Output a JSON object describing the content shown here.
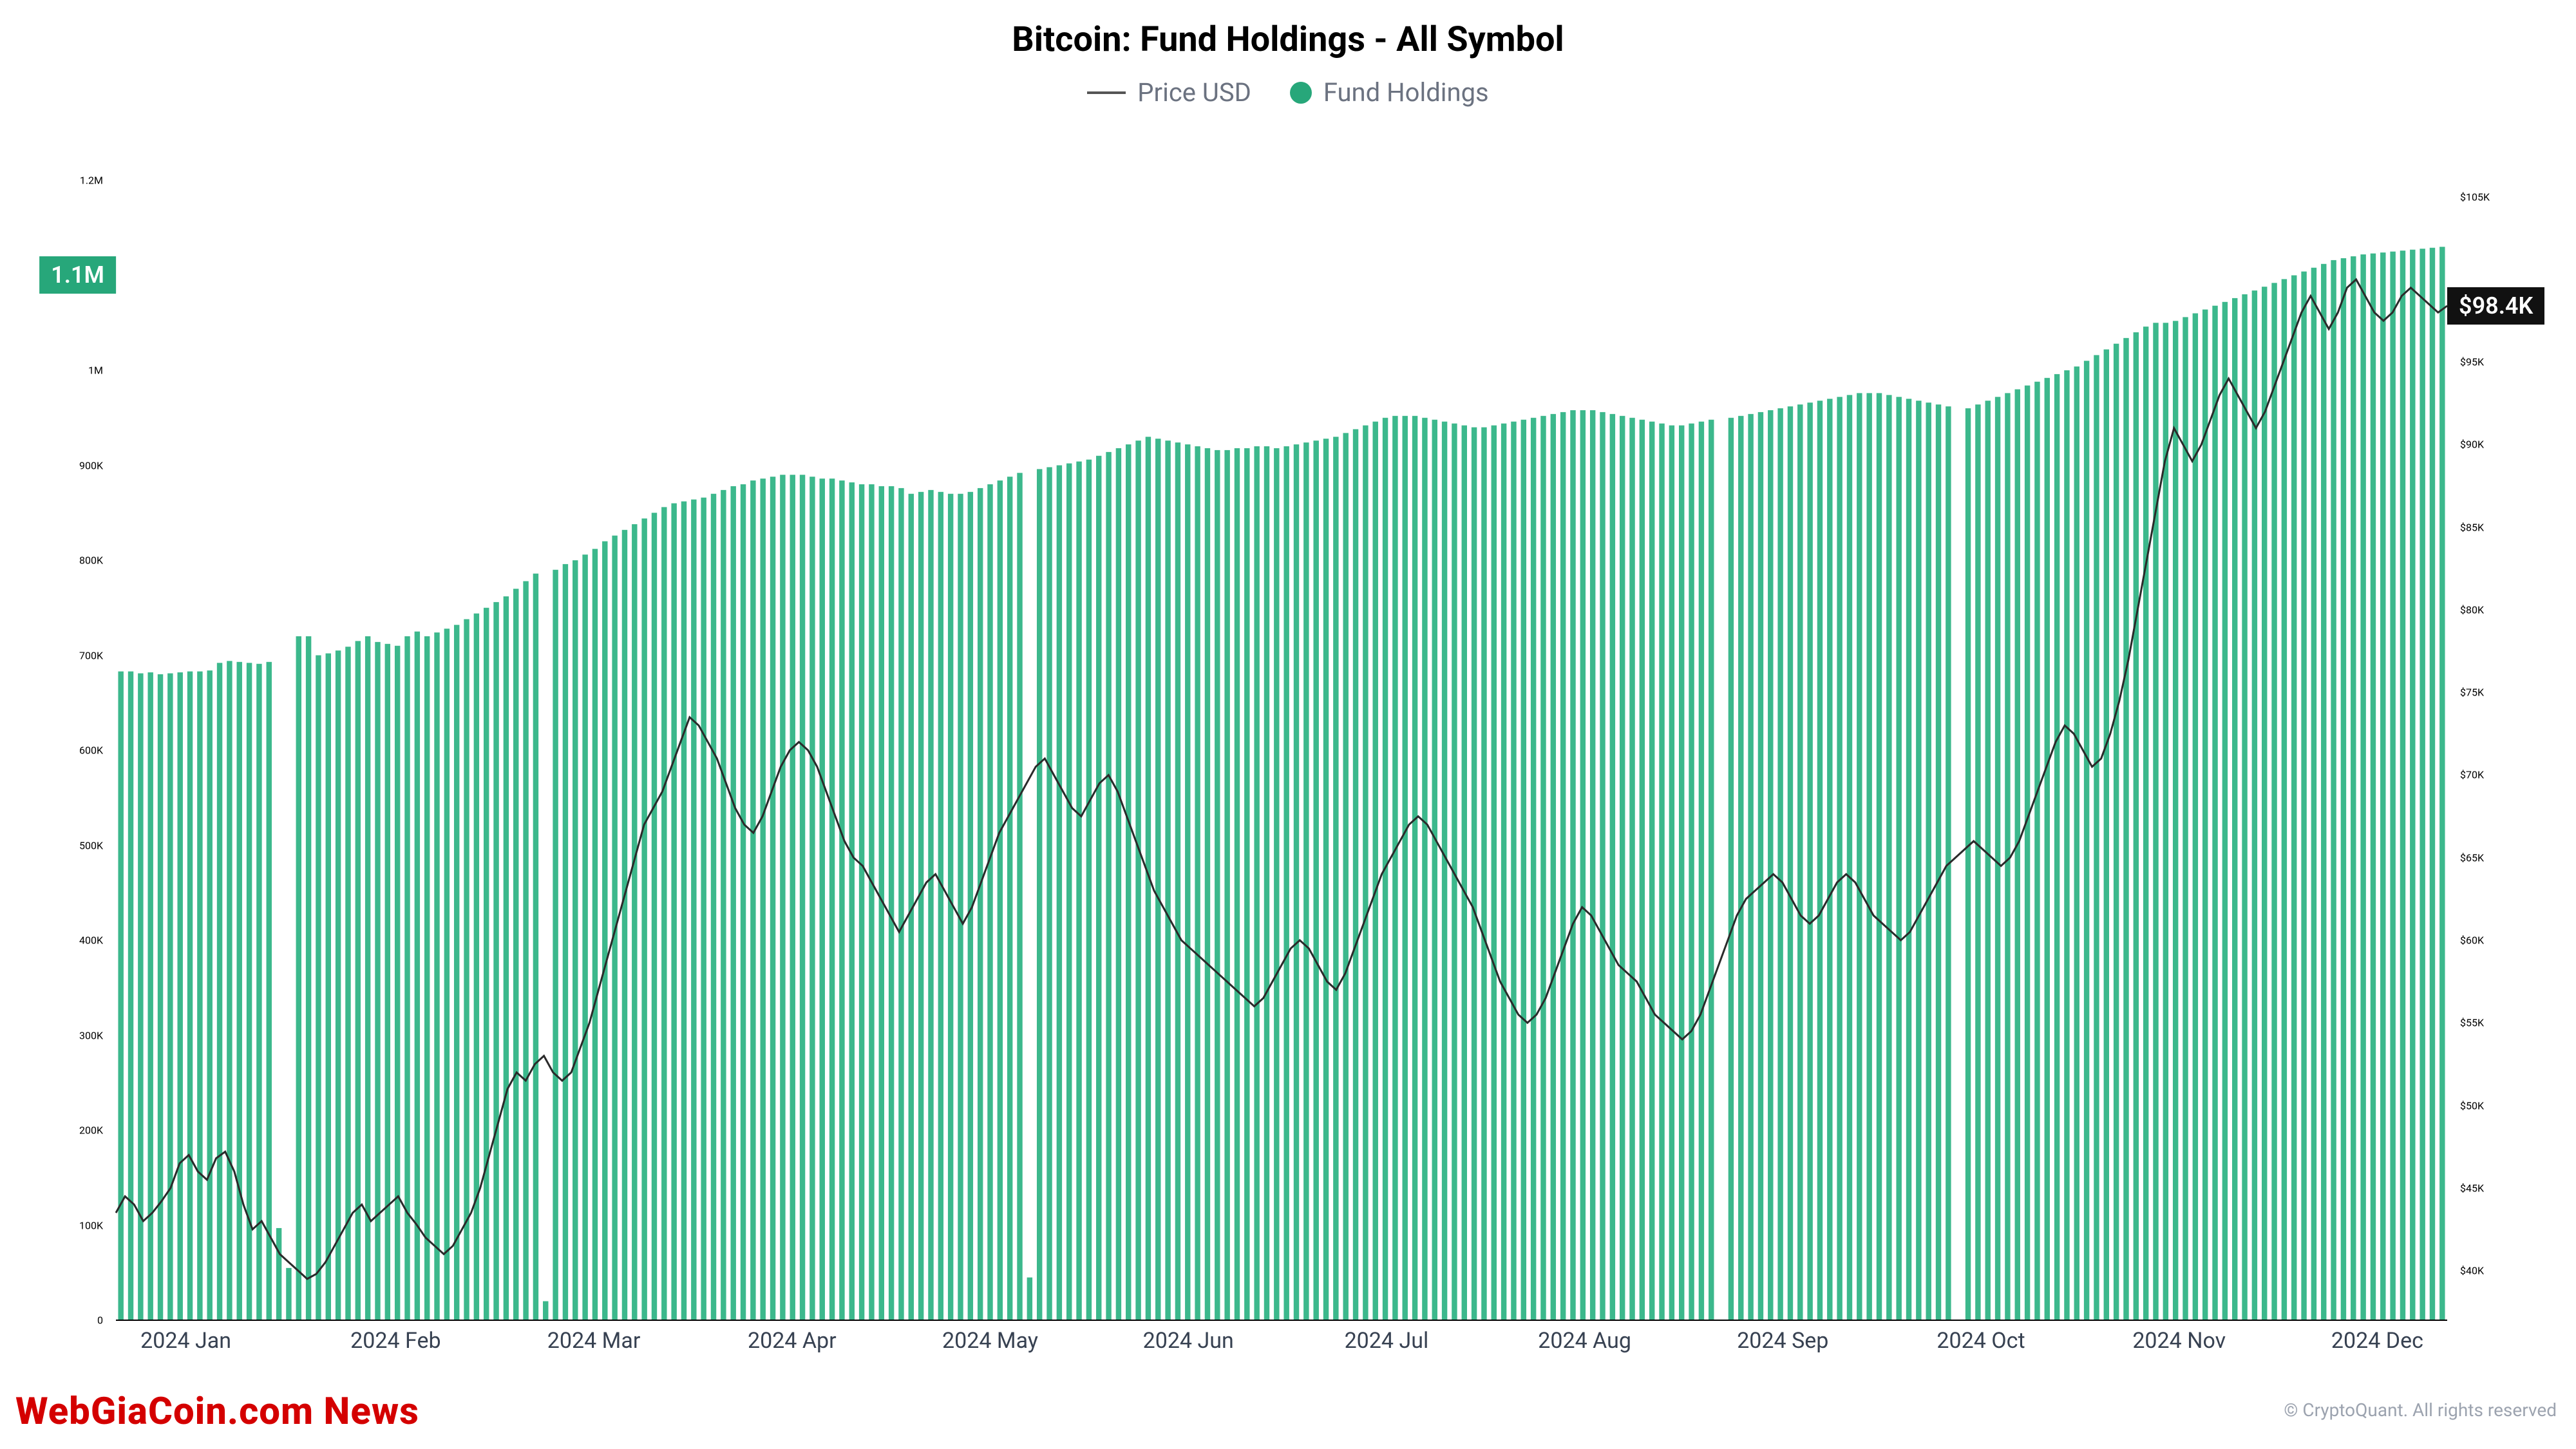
{
  "title": "Bitcoin: Fund Holdings - All Symbol",
  "legend": {
    "price_label": "Price USD",
    "holdings_label": "Fund Holdings",
    "line_color": "#555555",
    "dot_color": "#27a77a"
  },
  "chart": {
    "bar_color": "#3cb88c",
    "line_color": "#2a2a2a",
    "line_width": 3,
    "background_color": "#ffffff",
    "left_axis": {
      "min": 0,
      "max": 1200000,
      "ticks": [
        0,
        100000,
        200000,
        300000,
        400000,
        500000,
        600000,
        700000,
        800000,
        900000,
        1000000,
        1100000,
        1200000
      ],
      "labels": [
        "0",
        "100K",
        "200K",
        "300K",
        "400K",
        "500K",
        "600K",
        "700K",
        "800K",
        "900K",
        "1M",
        "1.1M",
        "1.2M"
      ],
      "badge_value": "1.1M",
      "badge_bg": "#27a77a"
    },
    "right_axis": {
      "min": 37000,
      "max": 106000,
      "ticks": [
        40000,
        45000,
        50000,
        55000,
        60000,
        65000,
        70000,
        75000,
        80000,
        85000,
        90000,
        95000,
        105000
      ],
      "labels": [
        "$40K",
        "$45K",
        "$50K",
        "$55K",
        "$60K",
        "$65K",
        "$70K",
        "$75K",
        "$80K",
        "$85K",
        "$90K",
        "$95K",
        "$105K"
      ],
      "badge_value": "$98.4K",
      "badge_bg": "#111111"
    },
    "x_axis": {
      "labels": [
        "2024 Jan",
        "2024 Feb",
        "2024 Mar",
        "2024 Apr",
        "2024 May",
        "2024 Jun",
        "2024 Jul",
        "2024 Aug",
        "2024 Sep",
        "2024 Oct",
        "2024 Nov",
        "2024 Dec"
      ],
      "positions_pct": [
        3,
        12,
        20.5,
        29,
        37.5,
        46,
        54.5,
        63,
        71.5,
        80,
        88.5,
        97
      ]
    },
    "holdings": [
      683000,
      683000,
      681000,
      682000,
      680000,
      681000,
      682000,
      683000,
      683000,
      684000,
      692000,
      694000,
      693000,
      692000,
      691000,
      693000,
      97000,
      55000,
      720000,
      720000,
      700000,
      702000,
      705000,
      709000,
      715000,
      720000,
      714000,
      712000,
      710000,
      720000,
      725000,
      720000,
      724000,
      728000,
      732000,
      738000,
      744000,
      750000,
      756000,
      762000,
      770000,
      778000,
      786000,
      20000,
      790000,
      796000,
      800000,
      806000,
      812000,
      820000,
      826000,
      832000,
      838000,
      844000,
      850000,
      856000,
      860000,
      862000,
      864000,
      866000,
      870000,
      874000,
      878000,
      880000,
      884000,
      886000,
      888000,
      890000,
      890000,
      890000,
      888000,
      886000,
      886000,
      884000,
      882000,
      880000,
      880000,
      878000,
      878000,
      876000,
      870000,
      872000,
      874000,
      872000,
      870000,
      870000,
      872000,
      876000,
      880000,
      884000,
      888000,
      892000,
      45000,
      896000,
      898000,
      900000,
      902000,
      904000,
      906000,
      910000,
      914000,
      918000,
      922000,
      926000,
      930000,
      928000,
      926000,
      924000,
      922000,
      920000,
      918000,
      916000,
      916000,
      918000,
      918000,
      920000,
      920000,
      918000,
      920000,
      922000,
      924000,
      926000,
      928000,
      930000,
      934000,
      938000,
      942000,
      946000,
      950000,
      952000,
      952000,
      952000,
      950000,
      948000,
      946000,
      944000,
      942000,
      940000,
      940000,
      942000,
      944000,
      946000,
      948000,
      950000,
      952000,
      954000,
      956000,
      958000,
      958000,
      958000,
      956000,
      954000,
      952000,
      950000,
      948000,
      946000,
      944000,
      942000,
      942000,
      944000,
      946000,
      948000,
      0,
      950000,
      952000,
      954000,
      956000,
      958000,
      960000,
      962000,
      964000,
      966000,
      968000,
      970000,
      972000,
      974000,
      976000,
      976000,
      976000,
      974000,
      972000,
      970000,
      968000,
      966000,
      964000,
      962000,
      0,
      960000,
      964000,
      968000,
      972000,
      976000,
      980000,
      984000,
      988000,
      992000,
      996000,
      1000000,
      1004000,
      1010000,
      1016000,
      1022000,
      1028000,
      1034000,
      1040000,
      1046000,
      1050000,
      1050000,
      1052000,
      1056000,
      1060000,
      1064000,
      1068000,
      1072000,
      1076000,
      1080000,
      1084000,
      1088000,
      1092000,
      1096000,
      1100000,
      1104000,
      1108000,
      1112000,
      1116000,
      1118000,
      1120000,
      1122000,
      1123000,
      1124000,
      1125000,
      1126000,
      1127000,
      1128000,
      1129000,
      1130000
    ],
    "price": [
      43500,
      44500,
      44000,
      43000,
      43500,
      44200,
      45000,
      46500,
      47000,
      46000,
      45500,
      46800,
      47200,
      46000,
      44000,
      42500,
      43000,
      42000,
      41000,
      40500,
      40000,
      39500,
      39800,
      40500,
      41500,
      42500,
      43500,
      44000,
      43000,
      43500,
      44000,
      44500,
      43500,
      42800,
      42000,
      41500,
      41000,
      41500,
      42500,
      43500,
      45000,
      47000,
      49000,
      51000,
      52000,
      51500,
      52500,
      53000,
      52000,
      51500,
      52000,
      53500,
      55000,
      57000,
      59000,
      61000,
      63000,
      65000,
      67000,
      68000,
      69000,
      70500,
      72000,
      73500,
      73000,
      72000,
      71000,
      69500,
      68000,
      67000,
      66500,
      67500,
      69000,
      70500,
      71500,
      72000,
      71500,
      70500,
      69000,
      67500,
      66000,
      65000,
      64500,
      63500,
      62500,
      61500,
      60500,
      61500,
      62500,
      63500,
      64000,
      63000,
      62000,
      61000,
      62000,
      63500,
      65000,
      66500,
      67500,
      68500,
      69500,
      70500,
      71000,
      70000,
      69000,
      68000,
      67500,
      68500,
      69500,
      70000,
      69000,
      67500,
      66000,
      64500,
      63000,
      62000,
      61000,
      60000,
      59500,
      59000,
      58500,
      58000,
      57500,
      57000,
      56500,
      56000,
      56500,
      57500,
      58500,
      59500,
      60000,
      59500,
      58500,
      57500,
      57000,
      58000,
      59500,
      61000,
      62500,
      64000,
      65000,
      66000,
      67000,
      67500,
      67000,
      66000,
      65000,
      64000,
      63000,
      62000,
      60500,
      59000,
      57500,
      56500,
      55500,
      55000,
      55500,
      56500,
      58000,
      59500,
      61000,
      62000,
      61500,
      60500,
      59500,
      58500,
      58000,
      57500,
      56500,
      55500,
      55000,
      54500,
      54000,
      54500,
      55500,
      57000,
      58500,
      60000,
      61500,
      62500,
      63000,
      63500,
      64000,
      63500,
      62500,
      61500,
      61000,
      61500,
      62500,
      63500,
      64000,
      63500,
      62500,
      61500,
      61000,
      60500,
      60000,
      60500,
      61500,
      62500,
      63500,
      64500,
      65000,
      65500,
      66000,
      65500,
      65000,
      64500,
      65000,
      66000,
      67500,
      69000,
      70500,
      72000,
      73000,
      72500,
      71500,
      70500,
      71000,
      72500,
      74500,
      77000,
      80000,
      83000,
      86000,
      89000,
      91000,
      90000,
      89000,
      90000,
      91500,
      93000,
      94000,
      93000,
      92000,
      91000,
      92000,
      93500,
      95000,
      96500,
      98000,
      99000,
      98000,
      97000,
      98000,
      99500,
      100000,
      99000,
      98000,
      97500,
      98000,
      99000,
      99500,
      99000,
      98500,
      98000,
      98400
    ]
  },
  "footer": {
    "left_watermark": "WebGiaCoin.com News",
    "right_watermark": "© CryptoQuant. All rights reserved"
  }
}
